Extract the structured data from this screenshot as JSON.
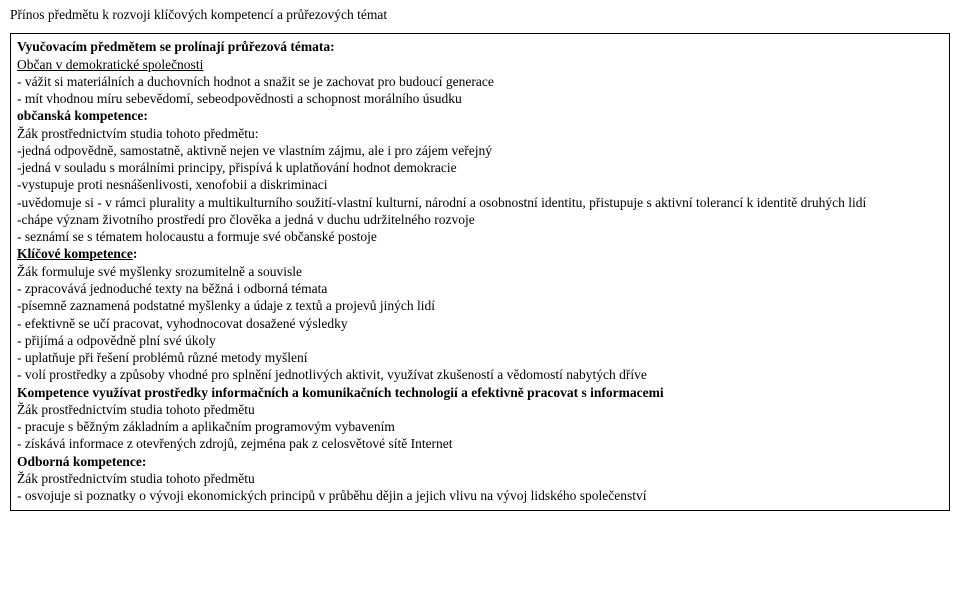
{
  "header": {
    "contribution_line": "Přínos předmětu k rozvoji klíčových kompetencí a průřezových témat"
  },
  "intro": {
    "lead_bold": "Vyučovacím předmětem se prolínají průřezová témata:",
    "section1_title": "Občan v demokratické společnosti",
    "s1_l1": "- vážit si materiálních a duchovních hodnot a snažit se je zachovat pro budoucí generace",
    "s1_l2": "- mít vhodnou míru sebevědomí, sebeodpovědnosti a schopnost morálního úsudku"
  },
  "obcanska": {
    "title": "občanská kompetence:",
    "l1": "Žák prostřednictvím studia tohoto předmětu:",
    "l2": "-jedná odpovědně, samostatně, aktivně nejen ve vlastním zájmu, ale i pro zájem veřejný",
    "l3": "-jedná v souladu s morálními principy, přispívá k uplatňování hodnot demokracie",
    "l4": "-vystupuje proti nesnášenlivosti, xenofobii a diskriminaci",
    "l5": "-uvědomuje si - v rámci plurality a multikulturního soužití-vlastní kulturní, národní a osobnostní identitu, přistupuje s aktivní tolerancí k identitě druhých lidí",
    "l6": "-chápe význam životního prostředí pro člověka a jedná v duchu udržitelného rozvoje",
    "l7": "- seznámí se s tématem holocaustu a formuje své občanské postoje"
  },
  "klicove": {
    "title": "Klíčové kompetence",
    "colon": ":",
    "l1": "Žák formuluje své myšlenky srozumitelně a souvisle",
    "l2": "- zpracovává jednoduché texty na běžná i odborná témata",
    "l3": "-písemně zaznamená podstatné myšlenky a údaje z textů a projevů jiných lidí",
    "l4": "- efektivně se učí pracovat, vyhodnocovat dosažené výsledky",
    "l5": "- přijímá a odpovědně plní své úkoly",
    "l6": "- uplatňuje při řešení problémů různé metody myšlení",
    "l7": "- volí prostředky a způsoby vhodné pro splnění jednotlivých aktivit, využívat zkušeností a vědomostí nabytých dříve"
  },
  "ict": {
    "title": "Kompetence využívat prostředky informačních a komunikačních technologií a efektivně pracovat s informacemi",
    "l1": "Žák prostřednictvím studia tohoto předmětu",
    "l2": "- pracuje s běžným základním a aplikačním programovým vybavením",
    "l3": "- získává informace z otevřených zdrojů, zejména pak z celosvětové sítě Internet"
  },
  "odborna": {
    "title": "Odborná kompetence:",
    "l1": "Žák prostřednictvím studia tohoto předmětu",
    "l2": "- osvojuje si poznatky o vývoji ekonomických principů v průběhu dějin a jejich vlivu na vývoj lidského společenství"
  }
}
